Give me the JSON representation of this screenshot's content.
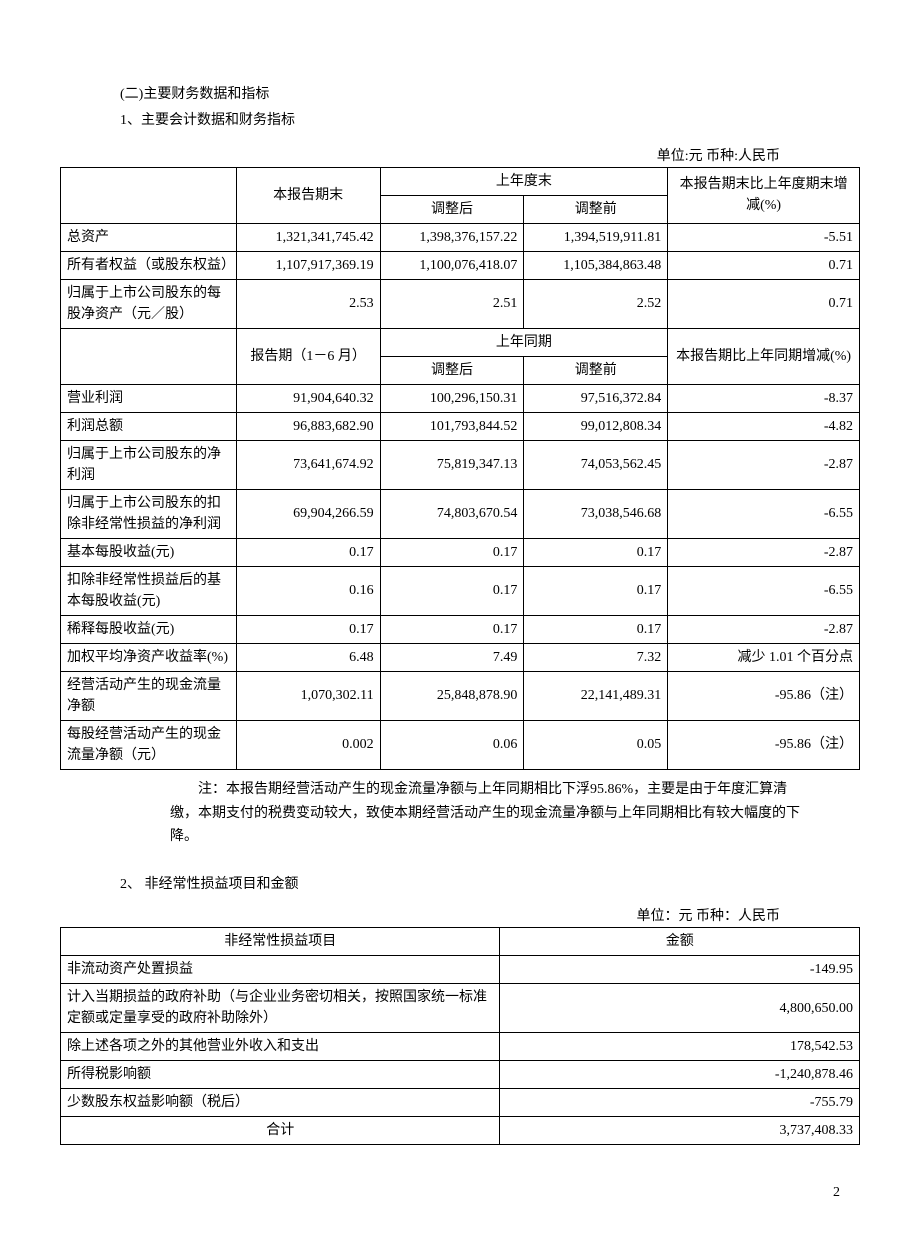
{
  "headings": {
    "sec2": "(二)主要财务数据和指标",
    "item1": "1、主要会计数据和财务指标",
    "item2": "2、 非经常性损益项目和金额"
  },
  "units": {
    "u1": "单位:元  币种:人民币",
    "u2": "单位：元  币种：人民币"
  },
  "table1": {
    "hdr": {
      "blank": "",
      "col1a": "本报告期末",
      "col2_top": "上年度末",
      "col2_adj": "调整后",
      "col2_pre": "调整前",
      "col3a": "本报告期末比上年度期末增减(%)",
      "col1b": "报告期（1－6 月）",
      "col2b_top": "上年同期",
      "col3b": "本报告期比上年同期增减(%)"
    },
    "rows_a": [
      {
        "label": "总资产",
        "c1": "1,321,341,745.42",
        "c2": "1,398,376,157.22",
        "c3": "1,394,519,911.81",
        "c4": "-5.51"
      },
      {
        "label": "所有者权益（或股东权益）",
        "c1": "1,107,917,369.19",
        "c2": "1,100,076,418.07",
        "c3": "1,105,384,863.48",
        "c4": "0.71"
      },
      {
        "label": "归属于上市公司股东的每股净资产（元／股）",
        "c1": "2.53",
        "c2": "2.51",
        "c3": "2.52",
        "c4": "0.71"
      }
    ],
    "rows_b": [
      {
        "label": "营业利润",
        "c1": "91,904,640.32",
        "c2": "100,296,150.31",
        "c3": "97,516,372.84",
        "c4": "-8.37"
      },
      {
        "label": "利润总额",
        "c1": "96,883,682.90",
        "c2": "101,793,844.52",
        "c3": "99,012,808.34",
        "c4": "-4.82"
      },
      {
        "label": "归属于上市公司股东的净利润",
        "c1": "73,641,674.92",
        "c2": "75,819,347.13",
        "c3": "74,053,562.45",
        "c4": "-2.87"
      },
      {
        "label": "归属于上市公司股东的扣除非经常性损益的净利润",
        "c1": "69,904,266.59",
        "c2": "74,803,670.54",
        "c3": "73,038,546.68",
        "c4": "-6.55"
      },
      {
        "label": "基本每股收益(元)",
        "c1": "0.17",
        "c2": "0.17",
        "c3": "0.17",
        "c4": "-2.87"
      },
      {
        "label": "扣除非经常性损益后的基本每股收益(元)",
        "c1": "0.16",
        "c2": "0.17",
        "c3": "0.17",
        "c4": "-6.55"
      },
      {
        "label": "稀释每股收益(元)",
        "c1": "0.17",
        "c2": "0.17",
        "c3": "0.17",
        "c4": "-2.87"
      },
      {
        "label": "加权平均净资产收益率(%)",
        "c1": "6.48",
        "c2": "7.49",
        "c3": "7.32",
        "c4": "减少 1.01 个百分点"
      },
      {
        "label": "经营活动产生的现金流量净额",
        "c1": "1,070,302.11",
        "c2": "25,848,878.90",
        "c3": "22,141,489.31",
        "c4": "-95.86（注）"
      },
      {
        "label": "每股经营活动产生的现金流量净额（元）",
        "c1": "0.002",
        "c2": "0.06",
        "c3": "0.05",
        "c4": "-95.86（注）"
      }
    ]
  },
  "note": "注：本报告期经营活动产生的现金流量净额与上年同期相比下浮95.86%，主要是由于年度汇算清缴，本期支付的税费变动较大，致使本期经营活动产生的现金流量净额与上年同期相比有较大幅度的下降。",
  "table2": {
    "hdr": {
      "c1": "非经常性损益项目",
      "c2": "金额"
    },
    "rows": [
      {
        "label": "非流动资产处置损益",
        "val": "-149.95"
      },
      {
        "label": "计入当期损益的政府补助（与企业业务密切相关，按照国家统一标准定额或定量享受的政府补助除外）",
        "val": "4,800,650.00"
      },
      {
        "label": "除上述各项之外的其他营业外收入和支出",
        "val": "178,542.53"
      },
      {
        "label": "所得税影响额",
        "val": "-1,240,878.46"
      },
      {
        "label": "少数股东权益影响额（税后）",
        "val": "-755.79"
      }
    ],
    "total": {
      "label": "合计",
      "val": "3,737,408.33"
    }
  },
  "page": "2",
  "colwidths": {
    "t1_c0": "22%",
    "t1_c1": "18%",
    "t1_c2": "18%",
    "t1_c3": "18%",
    "t1_c4": "24%",
    "t2_c0": "55%",
    "t2_c1": "45%"
  }
}
